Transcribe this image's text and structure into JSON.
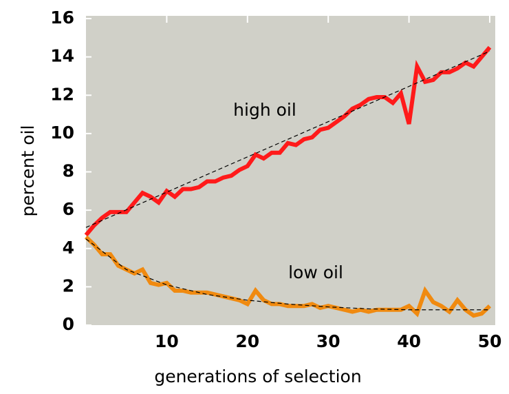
{
  "chart_data": {
    "type": "line",
    "x_label": "generations of selection",
    "y_label": "percent oil",
    "annotations": [
      "high oil",
      "low oil"
    ],
    "x": [
      0,
      1,
      2,
      3,
      4,
      5,
      6,
      7,
      8,
      9,
      10,
      11,
      12,
      13,
      14,
      15,
      16,
      17,
      18,
      19,
      20,
      21,
      22,
      23,
      24,
      25,
      26,
      27,
      28,
      29,
      30,
      31,
      32,
      33,
      34,
      35,
      36,
      37,
      38,
      39,
      40,
      41,
      42,
      43,
      44,
      45,
      46,
      47,
      48,
      49,
      50
    ],
    "series": [
      {
        "color": "#ff1a1a",
        "values": [
          4.7,
          5.2,
          5.6,
          5.9,
          5.9,
          5.9,
          6.4,
          6.9,
          6.7,
          6.4,
          7.0,
          6.7,
          7.1,
          7.1,
          7.2,
          7.5,
          7.5,
          7.7,
          7.8,
          8.1,
          8.3,
          8.9,
          8.7,
          9.0,
          9.0,
          9.5,
          9.4,
          9.7,
          9.8,
          10.2,
          10.3,
          10.6,
          10.9,
          11.3,
          11.5,
          11.8,
          11.9,
          11.9,
          11.6,
          12.1,
          10.5,
          13.5,
          12.7,
          12.8,
          13.2,
          13.2,
          13.4,
          13.7,
          13.5,
          14.0,
          14.5
        ]
      },
      {
        "color": "#f08a10",
        "values": [
          4.6,
          4.2,
          3.7,
          3.7,
          3.1,
          2.9,
          2.7,
          2.9,
          2.2,
          2.1,
          2.2,
          1.8,
          1.8,
          1.7,
          1.7,
          1.7,
          1.6,
          1.5,
          1.4,
          1.3,
          1.1,
          1.8,
          1.3,
          1.1,
          1.1,
          1.0,
          1.0,
          1.0,
          1.1,
          0.9,
          1.0,
          0.9,
          0.8,
          0.7,
          0.8,
          0.7,
          0.8,
          0.8,
          0.8,
          0.8,
          1.0,
          0.6,
          1.8,
          1.2,
          1.0,
          0.7,
          1.3,
          0.8,
          0.5,
          0.6,
          1.0
        ]
      },
      {
        "color": "#000000",
        "dashed": true,
        "x": [
          0,
          50
        ],
        "values": [
          5.1,
          14.3
        ]
      },
      {
        "color": "#000000",
        "dashed": true,
        "x": [
          0,
          5,
          10,
          15,
          20,
          25,
          30,
          35,
          40,
          45,
          50
        ],
        "values": [
          4.5,
          2.9,
          2.1,
          1.6,
          1.3,
          1.1,
          0.95,
          0.85,
          0.8,
          0.8,
          0.8
        ]
      }
    ],
    "background": "#d0d0c8",
    "xlim": [
      0,
      50
    ],
    "ylim": [
      0,
      16
    ],
    "xticks": [
      10,
      20,
      30,
      40,
      50
    ],
    "yticks": [
      0,
      2,
      4,
      6,
      8,
      10,
      12,
      14,
      16
    ]
  }
}
